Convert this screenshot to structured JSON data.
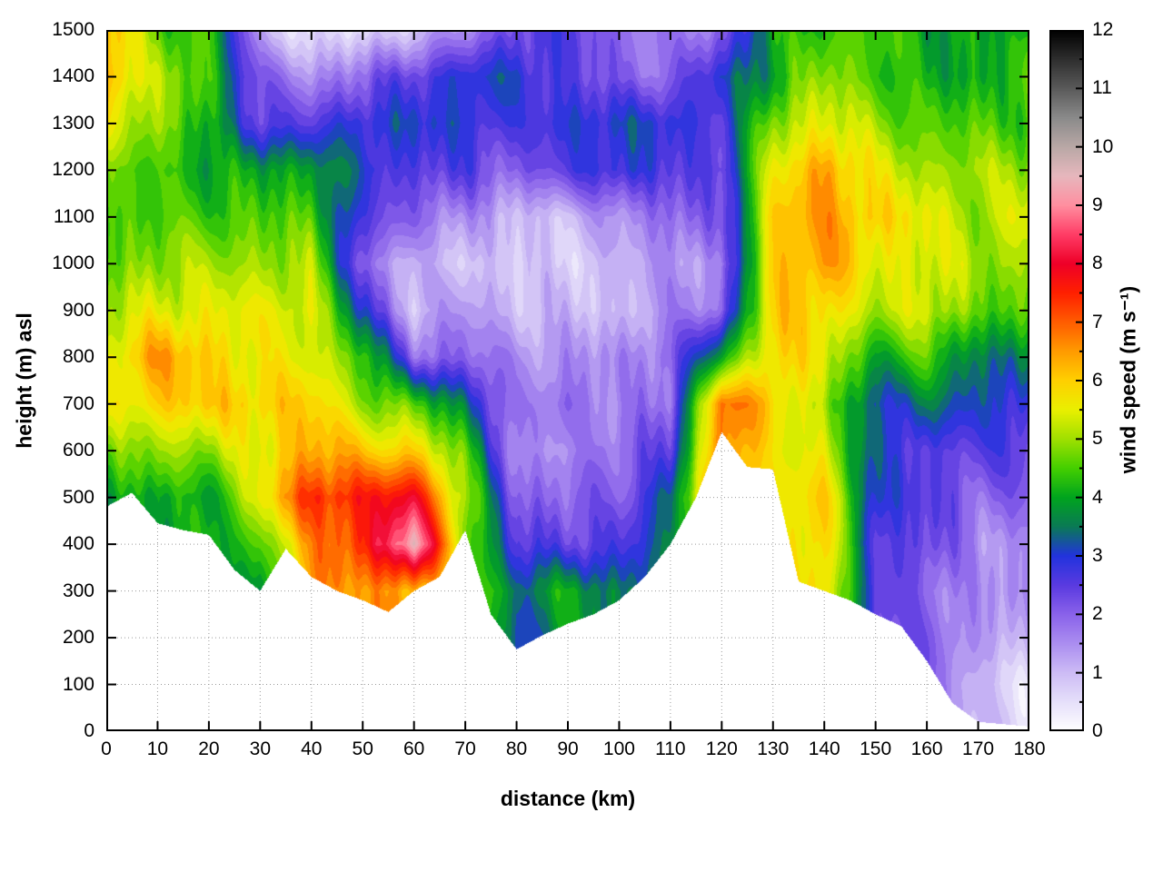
{
  "axes": {
    "x": {
      "label": "distance (km)",
      "min": 0,
      "max": 180,
      "ticks": [
        0,
        10,
        20,
        30,
        40,
        50,
        60,
        70,
        80,
        90,
        100,
        110,
        120,
        130,
        140,
        150,
        160,
        170,
        180
      ]
    },
    "y": {
      "label": "height (m) asl",
      "min": 0,
      "max": 1500,
      "ticks": [
        0,
        100,
        200,
        300,
        400,
        500,
        600,
        700,
        800,
        900,
        1000,
        1100,
        1200,
        1300,
        1400,
        1500
      ]
    },
    "colorbar": {
      "label": "wind speed (m s⁻¹)",
      "min": 0,
      "max": 12,
      "ticks": [
        0,
        1,
        2,
        3,
        4,
        5,
        6,
        7,
        8,
        9,
        10,
        11,
        12
      ]
    }
  },
  "chart_data": {
    "type": "heatmap",
    "title": "",
    "xlabel": "distance (km)",
    "ylabel": "height (m) asl",
    "colorbar_label": "wind speed (m s⁻¹)",
    "xlim": [
      0,
      180
    ],
    "ylim": [
      0,
      1500
    ],
    "clim": [
      0,
      12
    ],
    "grid": true,
    "band_interval": 0.25,
    "x": [
      0,
      10,
      20,
      30,
      40,
      50,
      60,
      70,
      80,
      90,
      100,
      110,
      120,
      130,
      140,
      150,
      160,
      170,
      180
    ],
    "y": [
      0,
      100,
      200,
      300,
      400,
      500,
      600,
      700,
      800,
      900,
      1000,
      1100,
      1200,
      1300,
      1400,
      1500
    ],
    "values_note": "wind speed (m/s) rows bottom-up (y=0 first); null = below terrain",
    "values": [
      [
        null,
        null,
        null,
        null,
        null,
        null,
        null,
        null,
        null,
        null,
        null,
        null,
        null,
        null,
        null,
        null,
        null,
        null,
        null
      ],
      [
        null,
        null,
        null,
        null,
        null,
        null,
        null,
        null,
        null,
        null,
        null,
        null,
        null,
        null,
        null,
        null,
        null,
        1,
        0.5
      ],
      [
        null,
        null,
        null,
        null,
        null,
        null,
        null,
        null,
        3,
        null,
        null,
        null,
        null,
        null,
        null,
        null,
        2,
        1.5,
        1
      ],
      [
        null,
        null,
        null,
        3.5,
        null,
        6.5,
        6.5,
        null,
        3.5,
        4,
        3.5,
        null,
        null,
        null,
        null,
        2.5,
        2,
        1.5,
        1.5
      ],
      [
        null,
        null,
        null,
        4.5,
        6.5,
        7.5,
        9.5,
        null,
        2.5,
        2.5,
        2.5,
        null,
        null,
        null,
        6,
        2.5,
        2.5,
        1.5,
        1.5
      ],
      [
        4,
        4,
        4,
        5.5,
        7.5,
        7.5,
        8,
        5,
        2,
        2,
        2,
        3.5,
        null,
        null,
        6,
        3,
        2.5,
        2,
        2
      ],
      [
        4.5,
        5,
        5,
        5.5,
        6.5,
        6,
        6,
        4.5,
        1.5,
        1.5,
        2,
        2.5,
        null,
        5.5,
        5.5,
        3,
        2.5,
        2.5,
        2.5
      ],
      [
        5.5,
        6,
        6,
        6,
        6,
        5,
        4.5,
        3.5,
        1.5,
        2,
        1.5,
        2,
        7,
        6,
        5,
        3,
        3.5,
        3,
        3
      ],
      [
        5.5,
        6.5,
        6,
        5.5,
        5.5,
        4.5,
        2,
        2,
        1.5,
        1.5,
        1.5,
        2,
        4,
        6,
        5.5,
        4,
        4.5,
        3.5,
        3.5
      ],
      [
        5,
        5.5,
        5.5,
        5.5,
        5.5,
        3,
        1,
        1.5,
        1,
        1,
        1,
        1.5,
        2,
        6,
        6,
        5,
        5.5,
        4.5,
        4.5
      ],
      [
        4.5,
        5,
        5,
        5,
        5,
        2,
        1,
        1,
        0.8,
        0.8,
        1,
        1.5,
        1.5,
        6,
        6.5,
        5.5,
        5.5,
        5,
        5
      ],
      [
        4.5,
        4.5,
        4.5,
        4.5,
        4.5,
        2.5,
        2,
        1.5,
        1,
        1,
        1.5,
        2,
        2,
        6,
        6.5,
        6,
        5.5,
        5,
        5.5
      ],
      [
        4.5,
        4.5,
        4,
        4,
        4,
        3,
        2.5,
        2.5,
        2,
        2.5,
        3,
        2.5,
        2.5,
        5.5,
        6.5,
        5.5,
        5,
        5,
        5
      ],
      [
        5.5,
        5,
        4,
        2.5,
        2.5,
        3,
        3,
        3,
        2.5,
        3,
        3,
        3,
        2.5,
        5,
        5.5,
        5,
        4.5,
        4.5,
        4.5
      ],
      [
        6.5,
        5,
        4.5,
        2,
        1.5,
        2,
        2.5,
        3,
        3,
        2.5,
        2,
        2,
        3,
        4,
        5,
        4.5,
        4,
        4,
        4.5
      ],
      [
        6.5,
        4.5,
        4.5,
        1,
        0.5,
        0.5,
        1,
        1.5,
        2.5,
        2.5,
        2,
        1.5,
        2,
        4,
        4.5,
        4.5,
        4,
        4,
        4
      ]
    ],
    "terrain_x": [
      0,
      5,
      10,
      15,
      20,
      25,
      30,
      35,
      40,
      45,
      50,
      55,
      60,
      65,
      70,
      75,
      80,
      85,
      90,
      95,
      100,
      105,
      110,
      115,
      120,
      125,
      130,
      135,
      140,
      145,
      150,
      155,
      160,
      165,
      170,
      175,
      180
    ],
    "terrain_height": [
      480,
      510,
      445,
      430,
      420,
      345,
      300,
      390,
      330,
      300,
      280,
      255,
      300,
      330,
      430,
      250,
      175,
      205,
      230,
      250,
      280,
      330,
      400,
      500,
      640,
      565,
      560,
      320,
      300,
      280,
      250,
      225,
      150,
      60,
      20,
      15,
      10
    ],
    "palette_stops": [
      [
        0.0,
        "#ffffff"
      ],
      [
        0.5,
        "#e6e0fa"
      ],
      [
        1.0,
        "#cdbcf5"
      ],
      [
        1.5,
        "#ab8ef0"
      ],
      [
        2.0,
        "#8a62ea"
      ],
      [
        2.5,
        "#5a3ae0"
      ],
      [
        3.0,
        "#2233dd"
      ],
      [
        3.5,
        "#0a7a55"
      ],
      [
        4.0,
        "#00a41e"
      ],
      [
        4.5,
        "#44cf00"
      ],
      [
        5.0,
        "#a0e000"
      ],
      [
        5.5,
        "#eaf000"
      ],
      [
        6.0,
        "#ffd000"
      ],
      [
        6.5,
        "#ff9b00"
      ],
      [
        7.0,
        "#ff5c00"
      ],
      [
        7.5,
        "#ff2000"
      ],
      [
        8.0,
        "#ee0028"
      ],
      [
        8.5,
        "#ff3d66"
      ],
      [
        9.0,
        "#ff8fa0"
      ],
      [
        9.5,
        "#e7b7bd"
      ],
      [
        10.0,
        "#b9a8a6"
      ],
      [
        10.5,
        "#8a8a8a"
      ],
      [
        11.0,
        "#5a5a5a"
      ],
      [
        11.5,
        "#2e2e2e"
      ],
      [
        12.0,
        "#000000"
      ]
    ],
    "colors": {
      "background": "#ffffff",
      "frame": "#000000",
      "grid": "#9a9a9a",
      "below_terrain": "#ffffff"
    }
  }
}
